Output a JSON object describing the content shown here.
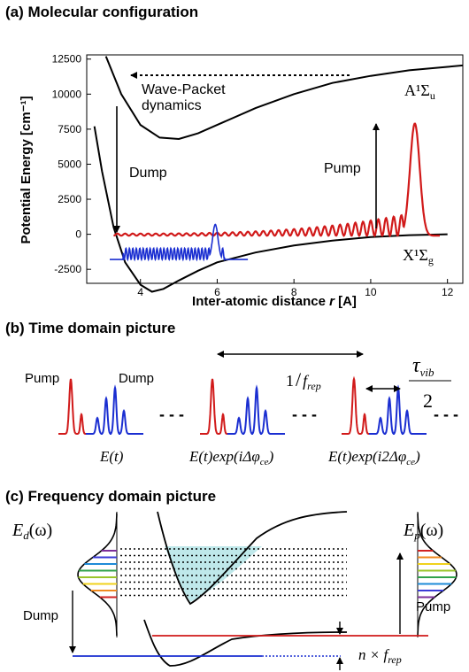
{
  "panels": {
    "a": {
      "title": "(a) Molecular configuration",
      "ylabel": "Potential Energy [cm⁻¹]",
      "xlabel_main": "Inter-atomic distance ",
      "xlabel_var": "r",
      "xlabel_unit": " [A]",
      "annot_wavepacket_1": "Wave-Packet",
      "annot_wavepacket_2": "dynamics",
      "annot_dump": "Dump",
      "annot_pump": "Pump",
      "label_upper_state": "A¹Σ",
      "label_upper_sub": "u",
      "label_lower_state": "X¹Σ",
      "label_lower_sub": "g"
    },
    "b": {
      "title": "(b) Time domain picture",
      "label_pump": "Pump",
      "label_dump": "Dump",
      "label_rep_1": "1",
      "label_rep_2": "/",
      "label_rep_3": "f",
      "label_rep_4": "rep",
      "label_tau": "τ",
      "label_tau_sub": "vib",
      "label_tau_den": "2",
      "dashes": "- - -",
      "pulse_labels": [
        "E(t)",
        "E(t)exp(iΔφ",
        "E(t)exp(i2Δφ"
      ],
      "pulse_label_sub": "ce",
      "pulse_label_close": ")"
    },
    "c": {
      "title": "(c) Frequency domain picture",
      "label_ed": "E",
      "label_ed_sub": "d",
      "label_ep": "E",
      "label_ep_sub": "p",
      "label_omega": "(ω)",
      "label_dump": "Dump",
      "label_pump": "Pump",
      "label_n": "n × f",
      "label_n_sub": "rep"
    }
  },
  "colors": {
    "pump": "#d11a1a",
    "dump": "#1a2ed1",
    "fill_well": "#bfe8ea"
  },
  "chart_data": {
    "type": "line",
    "title": "(a) Molecular configuration",
    "xlabel": "Inter-atomic distance r [A]",
    "ylabel": "Potential Energy [cm-1]",
    "xlim": [
      2.6,
      12.4
    ],
    "ylim": [
      -3500,
      12800
    ],
    "xticks": [
      4,
      6,
      8,
      10,
      12
    ],
    "yticks": [
      -2500,
      0,
      2500,
      5000,
      7500,
      10000,
      12500
    ],
    "series": [
      {
        "name": "A¹Σu",
        "x": [
          3.1,
          3.5,
          4.0,
          4.5,
          5.0,
          5.5,
          6.0,
          7.0,
          8.0,
          9.0,
          10.0,
          11.0,
          12.0,
          12.4
        ],
        "y": [
          12700,
          10000,
          7800,
          6900,
          6800,
          7200,
          7800,
          9000,
          10000,
          10800,
          11300,
          11700,
          11950,
          12050
        ]
      },
      {
        "name": "X¹Σg",
        "x": [
          2.8,
          3.0,
          3.3,
          3.6,
          4.0,
          4.3,
          4.6,
          5.0,
          5.5,
          6.0,
          7.0,
          8.0,
          9.0,
          10.0,
          11.0,
          12.0
        ],
        "y": [
          7700,
          4500,
          500,
          -2000,
          -3600,
          -4100,
          -3900,
          -3300,
          -2600,
          -2000,
          -1300,
          -800,
          -450,
          -200,
          -60,
          0
        ]
      },
      {
        "name": "Pump",
        "x_range": [
          3.3,
          11.8
        ],
        "baseline": -100,
        "peak_x": 11.15,
        "peak_y": 7900
      },
      {
        "name": "Dump",
        "x_range": [
          3.2,
          6.8
        ],
        "baseline": -1800,
        "peak_x": 5.95,
        "peak_y": 700
      }
    ]
  }
}
